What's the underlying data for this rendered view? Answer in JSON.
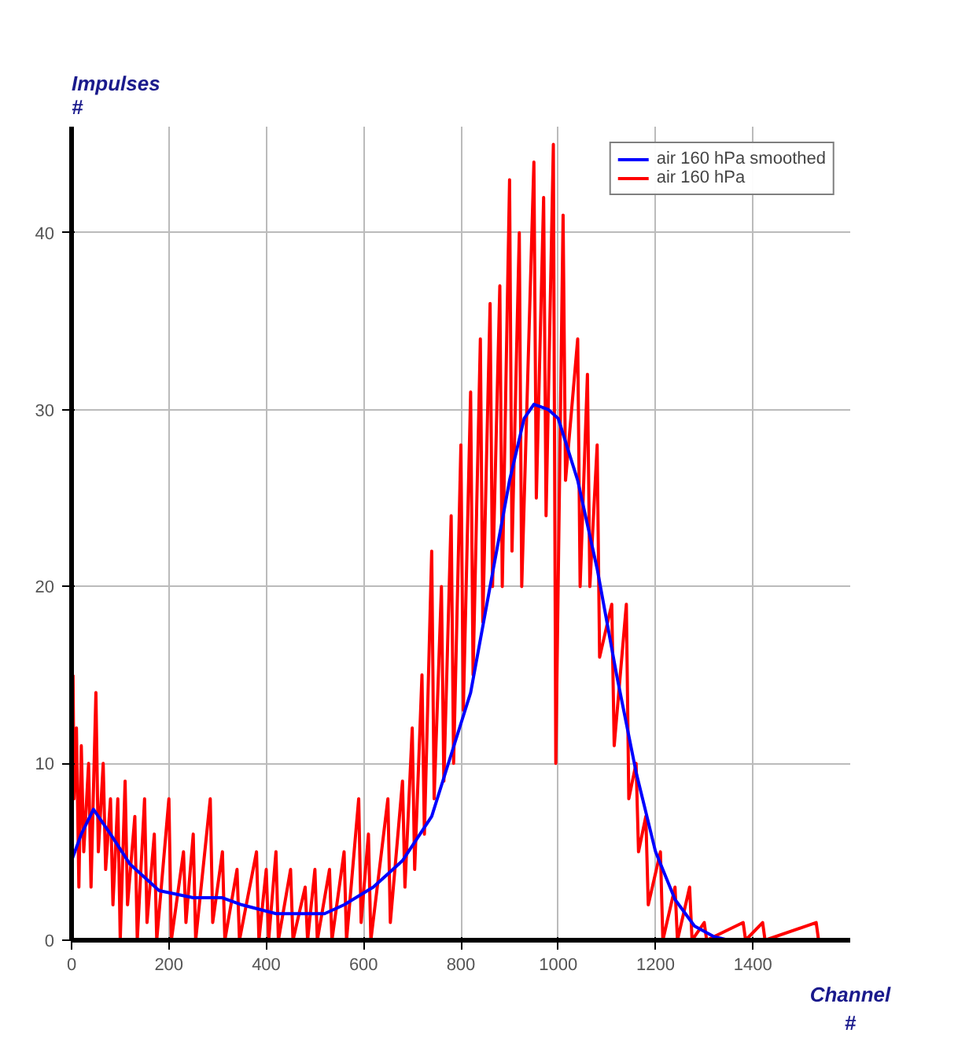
{
  "chart_data": {
    "type": "line",
    "xlabel": "Channel\n#",
    "ylabel": "Impulses\n#",
    "xlim": [
      0,
      1600
    ],
    "ylim": [
      0,
      46
    ],
    "xticks": [
      0,
      200,
      400,
      600,
      800,
      1000,
      1200,
      1400
    ],
    "yticks": [
      0,
      10,
      20,
      30,
      40
    ],
    "grid": true,
    "legend": "top right",
    "line_style": "solid",
    "series": [
      {
        "name": "air 160 hPa",
        "color": "#ff0000",
        "x": [
          3,
          5,
          10,
          15,
          20,
          25,
          35,
          40,
          50,
          55,
          65,
          70,
          80,
          85,
          95,
          100,
          110,
          115,
          130,
          135,
          150,
          155,
          170,
          175,
          200,
          205,
          230,
          235,
          250,
          255,
          285,
          290,
          310,
          315,
          340,
          345,
          380,
          385,
          400,
          405,
          420,
          425,
          450,
          455,
          480,
          485,
          500,
          505,
          530,
          535,
          560,
          565,
          590,
          595,
          610,
          615,
          650,
          655,
          680,
          685,
          700,
          705,
          720,
          725,
          740,
          745,
          760,
          765,
          780,
          785,
          800,
          805,
          820,
          825,
          840,
          845,
          860,
          865,
          880,
          885,
          900,
          905,
          920,
          925,
          950,
          955,
          970,
          975,
          990,
          995,
          1010,
          1015,
          1040,
          1045,
          1060,
          1065,
          1080,
          1085,
          1110,
          1115,
          1140,
          1145,
          1160,
          1165,
          1180,
          1185,
          1210,
          1215,
          1240,
          1245,
          1270,
          1275,
          1300,
          1305,
          1380,
          1385,
          1420,
          1425,
          1530,
          1535
        ],
        "values": [
          15,
          8,
          12,
          3,
          11,
          5,
          10,
          3,
          14,
          5,
          10,
          4,
          8,
          2,
          8,
          0,
          9,
          2,
          7,
          0,
          8,
          1,
          6,
          0,
          8,
          0,
          5,
          1,
          6,
          0,
          8,
          1,
          5,
          0,
          4,
          0,
          5,
          0,
          4,
          0,
          5,
          0,
          4,
          0,
          3,
          0,
          4,
          0,
          4,
          0,
          5,
          0,
          8,
          1,
          6,
          0,
          8,
          1,
          9,
          3,
          12,
          4,
          15,
          6,
          22,
          8,
          20,
          9,
          24,
          10,
          28,
          13,
          31,
          15,
          34,
          18,
          36,
          20,
          37,
          20,
          43,
          22,
          40,
          20,
          44,
          25,
          42,
          24,
          45,
          10,
          41,
          26,
          34,
          20,
          32,
          20,
          28,
          16,
          19,
          11,
          19,
          8,
          10,
          5,
          7,
          2,
          5,
          0,
          3,
          0,
          3,
          0,
          1,
          0,
          1,
          0,
          1,
          0,
          1,
          0
        ]
      },
      {
        "name": "air 160 hPa smoothed",
        "color": "#0000ff",
        "x": [
          0,
          20,
          45,
          80,
          120,
          180,
          250,
          310,
          350,
          420,
          520,
          560,
          620,
          680,
          740,
          780,
          820,
          860,
          900,
          930,
          950,
          980,
          1000,
          1040,
          1080,
          1120,
          1160,
          1200,
          1240,
          1280,
          1320,
          1350
        ],
        "values": [
          4.5,
          6,
          7.4,
          6,
          4.3,
          2.8,
          2.4,
          2.4,
          2,
          1.5,
          1.5,
          2,
          3,
          4.5,
          7,
          10.5,
          14,
          20,
          26,
          29.5,
          30.3,
          30,
          29.5,
          26,
          21,
          15,
          9.5,
          5,
          2.3,
          0.8,
          0.2,
          0
        ]
      }
    ]
  }
}
